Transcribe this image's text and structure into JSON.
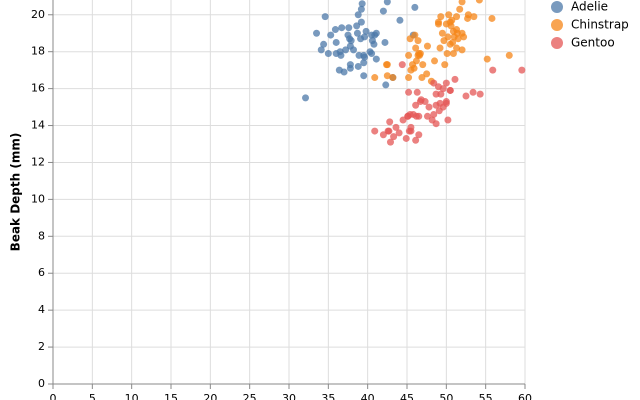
{
  "chart_data": {
    "type": "scatter",
    "y_label": "Beak Depth (mm)",
    "xlim": [
      0,
      60
    ],
    "xticks": [
      0,
      5,
      10,
      15,
      20,
      25,
      30,
      35,
      40,
      45,
      50,
      55,
      60
    ],
    "ylim": [
      0,
      20.8
    ],
    "yticks": [
      0,
      2,
      4,
      6,
      8,
      10,
      12,
      14,
      16,
      18,
      20
    ],
    "grid": true,
    "legend": "right",
    "series": [
      {
        "name": "Adelie",
        "color": "#4c78a8",
        "x": [
          39.1,
          39.5,
          40.3,
          36.7,
          39.3,
          38.9,
          39.2,
          34.1,
          42.0,
          37.8,
          37.8,
          41.1,
          38.6,
          34.6,
          36.6,
          38.7,
          42.5,
          34.4,
          46.0,
          37.8,
          37.7,
          35.9,
          38.2,
          38.8,
          35.3,
          40.6,
          40.5,
          37.9,
          40.5,
          39.5,
          37.2,
          39.5,
          40.9,
          36.4,
          39.2,
          38.8,
          42.2,
          37.6,
          39.8,
          36.5,
          40.8,
          36.0,
          44.1,
          37.0,
          39.6,
          41.1,
          37.5,
          36.0,
          42.3,
          39.6,
          32.1,
          33.5,
          35.0,
          45.8,
          43.2
        ],
        "y": [
          18.7,
          17.4,
          18.0,
          19.3,
          20.6,
          17.8,
          19.6,
          18.1,
          20.2,
          17.1,
          17.3,
          17.6,
          19.4,
          19.9,
          17.8,
          19.0,
          20.7,
          18.4,
          20.4,
          18.3,
          18.7,
          19.2,
          18.1,
          17.2,
          18.9,
          18.6,
          17.9,
          18.6,
          18.9,
          16.7,
          18.1,
          17.8,
          18.9,
          17.0,
          20.3,
          20.0,
          18.5,
          19.3,
          19.1,
          18.0,
          18.4,
          18.5,
          19.7,
          16.9,
          18.8,
          19.0,
          18.9,
          17.9,
          16.2,
          17.7,
          15.5,
          19.0,
          17.9,
          18.9,
          16.6
        ]
      },
      {
        "name": "Chinstrap",
        "color": "#f58518",
        "x": [
          46.5,
          50.0,
          51.3,
          45.4,
          52.7,
          45.2,
          46.1,
          51.3,
          46.0,
          51.3,
          46.6,
          51.7,
          47.0,
          52.0,
          45.9,
          50.5,
          50.3,
          58.0,
          46.4,
          49.2,
          42.4,
          48.5,
          43.2,
          50.6,
          46.7,
          52.0,
          50.5,
          49.5,
          46.4,
          52.8,
          40.9,
          54.2,
          42.5,
          51.0,
          49.7,
          47.5,
          47.6,
          52.0,
          46.9,
          53.5,
          49.0,
          46.2,
          50.9,
          45.5,
          50.9,
          50.8,
          50.1,
          49.0,
          51.5,
          49.8,
          48.1,
          51.4,
          45.7,
          50.7,
          42.5,
          52.2,
          45.2,
          49.3,
          50.2,
          55.8,
          55.2
        ],
        "y": [
          17.9,
          19.5,
          19.2,
          18.7,
          19.8,
          17.8,
          18.2,
          18.2,
          18.9,
          19.9,
          17.8,
          20.3,
          17.3,
          18.1,
          17.1,
          19.6,
          20.0,
          17.8,
          18.6,
          18.2,
          17.3,
          17.5,
          16.6,
          19.4,
          17.9,
          19.0,
          18.4,
          19.0,
          17.8,
          20.0,
          16.6,
          20.8,
          16.7,
          18.8,
          18.6,
          16.8,
          18.3,
          20.7,
          16.6,
          19.9,
          19.5,
          17.5,
          19.1,
          17.0,
          17.9,
          18.5,
          17.9,
          19.6,
          18.7,
          17.3,
          16.4,
          19.0,
          17.3,
          19.7,
          17.3,
          18.8,
          16.6,
          19.9,
          18.8,
          19.8,
          17.6
        ]
      },
      {
        "name": "Gentoo",
        "color": "#e45756",
        "x": [
          46.1,
          50.0,
          48.7,
          50.0,
          47.6,
          46.5,
          45.4,
          46.7,
          43.3,
          46.8,
          40.9,
          49.0,
          45.5,
          48.4,
          45.8,
          49.3,
          42.0,
          49.2,
          46.2,
          48.7,
          50.2,
          45.1,
          46.5,
          46.3,
          42.9,
          46.1,
          44.5,
          47.8,
          48.2,
          50.0,
          47.3,
          42.8,
          45.1,
          59.6,
          49.1,
          48.4,
          42.6,
          44.4,
          44.0,
          48.7,
          42.7,
          49.6,
          45.3,
          49.6,
          50.5,
          43.6,
          45.5,
          50.5,
          44.9,
          45.2,
          54.3,
          55.9,
          53.4,
          52.5,
          51.1
        ],
        "y": [
          13.2,
          16.3,
          14.1,
          15.2,
          14.5,
          13.5,
          14.6,
          15.3,
          13.4,
          15.4,
          13.7,
          16.1,
          13.7,
          14.6,
          14.6,
          15.7,
          13.5,
          15.2,
          14.5,
          15.1,
          14.3,
          14.5,
          14.5,
          15.8,
          13.1,
          15.1,
          14.3,
          15.0,
          14.3,
          15.3,
          15.3,
          14.2,
          14.5,
          17.0,
          14.8,
          16.3,
          13.7,
          17.3,
          13.6,
          15.7,
          13.7,
          16.0,
          13.7,
          15.0,
          15.9,
          13.9,
          13.9,
          15.9,
          13.3,
          15.8,
          15.7,
          17.0,
          15.8,
          15.6,
          16.5
        ]
      }
    ]
  }
}
